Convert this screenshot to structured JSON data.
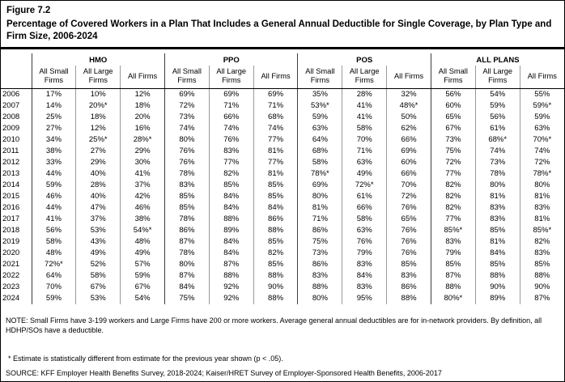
{
  "figure": {
    "label": "Figure 7.2",
    "title": "Percentage of Covered Workers in a Plan That Includes a General Annual Deductible for Single Coverage, by Plan Type and Firm Size, 2006-2024"
  },
  "chart_data": {
    "type": "table",
    "title": "Percentage of Covered Workers in a Plan That Includes a General Annual Deductible for Single Coverage, by Plan Type and Firm Size, 2006-2024",
    "column_groups": [
      "HMO",
      "PPO",
      "POS",
      "ALL PLANS"
    ],
    "sub_columns": [
      "All Small Firms",
      "All Large Firms",
      "All Firms"
    ],
    "row_header": "Year",
    "rows": [
      {
        "year": "2006",
        "values": [
          "17%",
          "10%",
          "12%",
          "69%",
          "69%",
          "69%",
          "35%",
          "28%",
          "32%",
          "56%",
          "54%",
          "55%"
        ]
      },
      {
        "year": "2007",
        "values": [
          "14%",
          "20%*",
          "18%",
          "72%",
          "71%",
          "71%",
          "53%*",
          "41%",
          "48%*",
          "60%",
          "59%",
          "59%*"
        ]
      },
      {
        "year": "2008",
        "values": [
          "25%",
          "18%",
          "20%",
          "73%",
          "66%",
          "68%",
          "59%",
          "41%",
          "50%",
          "65%",
          "56%",
          "59%"
        ]
      },
      {
        "year": "2009",
        "values": [
          "27%",
          "12%",
          "16%",
          "74%",
          "74%",
          "74%",
          "63%",
          "58%",
          "62%",
          "67%",
          "61%",
          "63%"
        ]
      },
      {
        "year": "2010",
        "values": [
          "34%",
          "25%*",
          "28%*",
          "80%",
          "76%",
          "77%",
          "64%",
          "70%",
          "66%",
          "73%",
          "68%*",
          "70%*"
        ]
      },
      {
        "year": "2011",
        "values": [
          "38%",
          "27%",
          "29%",
          "76%",
          "83%",
          "81%",
          "68%",
          "71%",
          "69%",
          "75%",
          "74%",
          "74%"
        ]
      },
      {
        "year": "2012",
        "values": [
          "33%",
          "29%",
          "30%",
          "76%",
          "77%",
          "77%",
          "58%",
          "63%",
          "60%",
          "72%",
          "73%",
          "72%"
        ]
      },
      {
        "year": "2013",
        "values": [
          "44%",
          "40%",
          "41%",
          "78%",
          "82%",
          "81%",
          "78%*",
          "49%",
          "66%",
          "77%",
          "78%",
          "78%*"
        ]
      },
      {
        "year": "2014",
        "values": [
          "59%",
          "28%",
          "37%",
          "83%",
          "85%",
          "85%",
          "69%",
          "72%*",
          "70%",
          "82%",
          "80%",
          "80%"
        ]
      },
      {
        "year": "2015",
        "values": [
          "46%",
          "40%",
          "42%",
          "85%",
          "84%",
          "85%",
          "80%",
          "61%",
          "72%",
          "82%",
          "81%",
          "81%"
        ]
      },
      {
        "year": "2016",
        "values": [
          "44%",
          "47%",
          "46%",
          "85%",
          "84%",
          "84%",
          "81%",
          "66%",
          "76%",
          "82%",
          "83%",
          "83%"
        ]
      },
      {
        "year": "2017",
        "values": [
          "41%",
          "37%",
          "38%",
          "78%",
          "88%",
          "86%",
          "71%",
          "58%",
          "65%",
          "77%",
          "83%",
          "81%"
        ]
      },
      {
        "year": "2018",
        "values": [
          "56%",
          "53%",
          "54%*",
          "86%",
          "89%",
          "88%",
          "86%",
          "63%",
          "76%",
          "85%*",
          "85%",
          "85%*"
        ]
      },
      {
        "year": "2019",
        "values": [
          "58%",
          "43%",
          "48%",
          "87%",
          "84%",
          "85%",
          "75%",
          "76%",
          "76%",
          "83%",
          "81%",
          "82%"
        ]
      },
      {
        "year": "2020",
        "values": [
          "48%",
          "49%",
          "49%",
          "78%",
          "84%",
          "82%",
          "73%",
          "79%",
          "76%",
          "79%",
          "84%",
          "83%"
        ]
      },
      {
        "year": "2021",
        "values": [
          "72%*",
          "52%",
          "57%",
          "80%",
          "87%",
          "85%",
          "86%",
          "83%",
          "85%",
          "85%",
          "85%",
          "85%"
        ]
      },
      {
        "year": "2022",
        "values": [
          "64%",
          "58%",
          "59%",
          "87%",
          "88%",
          "88%",
          "83%",
          "84%",
          "83%",
          "87%",
          "88%",
          "88%"
        ]
      },
      {
        "year": "2023",
        "values": [
          "70%",
          "67%",
          "67%",
          "84%",
          "92%",
          "90%",
          "88%",
          "83%",
          "86%",
          "88%",
          "90%",
          "90%"
        ]
      },
      {
        "year": "2024",
        "values": [
          "59%",
          "53%",
          "54%",
          "75%",
          "92%",
          "88%",
          "80%",
          "95%",
          "88%",
          "80%*",
          "89%",
          "87%"
        ]
      }
    ]
  },
  "notes": {
    "note": "NOTE: Small Firms have 3-199 workers and Large Firms have 200 or more workers. Average general annual deductibles are for in-network providers. By definition, all HDHP/SOs have a deductible.",
    "asterisk": "* Estimate is statistically different from estimate for the previous year shown (p < .05).",
    "source": "SOURCE: KFF Employer Health Benefits Survey, 2018-2024; Kaiser/HRET Survey of Employer-Sponsored Health Benefits, 2006-2017"
  }
}
